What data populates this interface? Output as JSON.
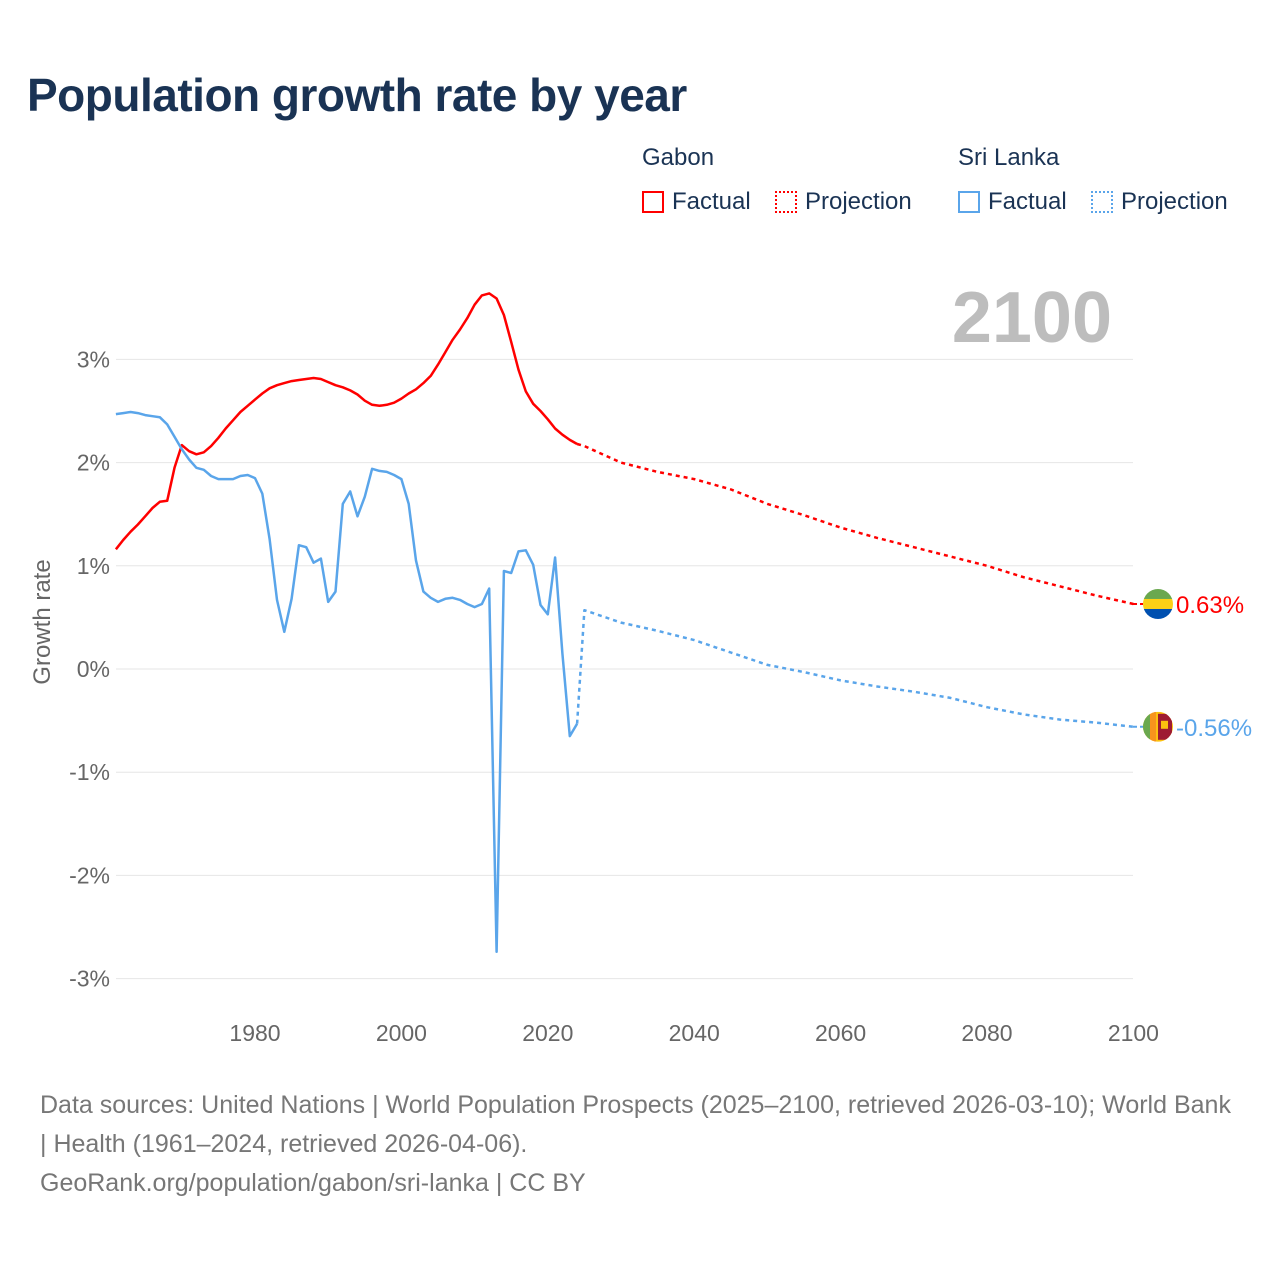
{
  "title": "Population growth rate by year",
  "legend": {
    "groups": [
      {
        "name": "Gabon",
        "color": "#ff0000",
        "factual_label": "Factual",
        "projection_label": "Projection"
      },
      {
        "name": "Sri Lanka",
        "color": "#5aa5ea",
        "factual_label": "Factual",
        "projection_label": "Projection"
      }
    ]
  },
  "year_label": "2100",
  "footer": {
    "sources": "Data sources: United Nations | World Population Prospects (2025–2100, retrieved 2026-03-10); World Bank | Health (1961–2024, retrieved 2026-04-06).",
    "credit": "GeoRank.org/population/gabon/sri-lanka | CC BY"
  },
  "chart_data": {
    "type": "line",
    "title": "Population growth rate by year",
    "xlabel": "",
    "ylabel": "Growth rate",
    "xlim": [
      1961,
      2100
    ],
    "ylim": [
      -3.3,
      3.8
    ],
    "xticks": [
      1980,
      2000,
      2020,
      2040,
      2060,
      2080,
      2100
    ],
    "xtick_labels": [
      "1980",
      "2000",
      "2020",
      "2040",
      "2060",
      "2080",
      "2100"
    ],
    "yticks": [
      3,
      2,
      1,
      0,
      -1,
      -2,
      -3
    ],
    "ytick_labels": [
      "3%",
      "2%",
      "1%",
      "0%",
      "-1%",
      "-2%",
      "-3%"
    ],
    "grid": true,
    "legend_position": "top-right",
    "series": [
      {
        "name": "Gabon",
        "kind": "factual",
        "color": "#ff0000",
        "x_start": 1961,
        "values": [
          1.16,
          1.25,
          1.33,
          1.4,
          1.48,
          1.56,
          1.62,
          1.63,
          1.95,
          2.17,
          2.11,
          2.08,
          2.1,
          2.16,
          2.24,
          2.33,
          2.41,
          2.49,
          2.55,
          2.61,
          2.67,
          2.72,
          2.75,
          2.77,
          2.79,
          2.8,
          2.81,
          2.82,
          2.81,
          2.78,
          2.75,
          2.73,
          2.7,
          2.66,
          2.6,
          2.56,
          2.55,
          2.56,
          2.58,
          2.62,
          2.67,
          2.71,
          2.77,
          2.84,
          2.95,
          3.07,
          3.19,
          3.29,
          3.4,
          3.53,
          3.62,
          3.64,
          3.59,
          3.43,
          3.17,
          2.9,
          2.69,
          2.57,
          2.5,
          2.42,
          2.33,
          2.27,
          2.22,
          2.18
        ]
      },
      {
        "name": "Gabon",
        "kind": "projection",
        "color": "#ff0000",
        "x": [
          2024,
          2025,
          2030,
          2035,
          2040,
          2045,
          2050,
          2055,
          2060,
          2065,
          2070,
          2075,
          2080,
          2085,
          2090,
          2095,
          2100
        ],
        "values": [
          2.18,
          2.16,
          2.0,
          1.91,
          1.84,
          1.74,
          1.6,
          1.49,
          1.37,
          1.27,
          1.18,
          1.09,
          1.0,
          0.89,
          0.8,
          0.71,
          0.63
        ]
      },
      {
        "name": "Sri Lanka",
        "kind": "factual",
        "color": "#5aa5ea",
        "x_start": 1961,
        "values": [
          2.47,
          2.48,
          2.49,
          2.48,
          2.46,
          2.45,
          2.44,
          2.37,
          2.25,
          2.13,
          2.03,
          1.95,
          1.93,
          1.87,
          1.84,
          1.84,
          1.84,
          1.87,
          1.88,
          1.85,
          1.7,
          1.26,
          0.67,
          0.36,
          0.68,
          1.2,
          1.18,
          1.03,
          1.07,
          0.65,
          0.75,
          1.6,
          1.72,
          1.48,
          1.67,
          1.94,
          1.92,
          1.91,
          1.88,
          1.84,
          1.6,
          1.05,
          0.75,
          0.69,
          0.65,
          0.68,
          0.69,
          0.67,
          0.63,
          0.6,
          0.63,
          0.78,
          -2.74,
          0.95,
          0.93,
          1.14,
          1.15,
          1.01,
          0.62,
          0.53,
          1.08,
          0.15,
          -0.65,
          -0.53
        ]
      },
      {
        "name": "Sri Lanka",
        "kind": "projection",
        "color": "#5aa5ea",
        "x": [
          2024,
          2025,
          2030,
          2035,
          2040,
          2045,
          2050,
          2055,
          2060,
          2065,
          2070,
          2075,
          2080,
          2085,
          2090,
          2095,
          2100
        ],
        "values": [
          -0.53,
          0.57,
          0.45,
          0.37,
          0.28,
          0.16,
          0.04,
          -0.03,
          -0.11,
          -0.17,
          -0.22,
          -0.28,
          -0.37,
          -0.44,
          -0.49,
          -0.52,
          -0.56
        ]
      }
    ],
    "end_labels": [
      {
        "name": "Gabon",
        "label": "0.63%",
        "color": "#ff0000"
      },
      {
        "name": "Sri Lanka",
        "label": "-0.56%",
        "color": "#5aa5ea"
      }
    ]
  }
}
